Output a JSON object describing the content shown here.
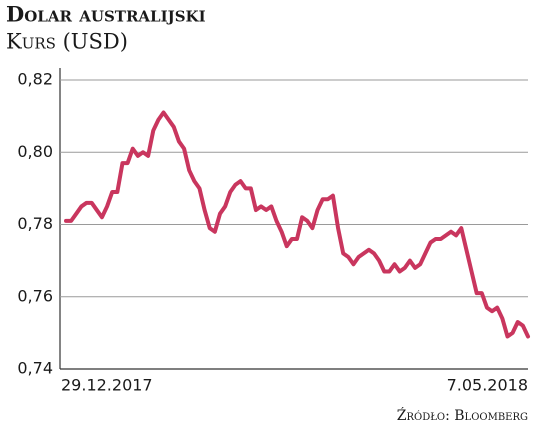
{
  "chart_data": {
    "type": "line",
    "title": "Dolar australijski",
    "subtitle": "Kurs (USD)",
    "source": "Źródło: Bloomberg",
    "categories": [
      "29.12.2017",
      null,
      null,
      null,
      null,
      null,
      null,
      null,
      null,
      null,
      null,
      null,
      null,
      null,
      null,
      null,
      null,
      null,
      null,
      null,
      null,
      null,
      null,
      null,
      null,
      null,
      null,
      null,
      null,
      null,
      null,
      null,
      null,
      null,
      null,
      null,
      null,
      null,
      null,
      null,
      null,
      null,
      null,
      null,
      null,
      null,
      null,
      null,
      null,
      null,
      null,
      null,
      null,
      null,
      null,
      null,
      null,
      null,
      null,
      null,
      null,
      null,
      null,
      null,
      null,
      null,
      null,
      null,
      null,
      null,
      null,
      null,
      null,
      null,
      null,
      null,
      null,
      null,
      null,
      null,
      null,
      null,
      null,
      null,
      null,
      null,
      null,
      null,
      null,
      null,
      "7.05.2018"
    ],
    "series": [
      {
        "name": "Kurs",
        "color": "#c9365e",
        "values": [
          0.781,
          0.781,
          0.783,
          0.785,
          0.786,
          0.786,
          0.784,
          0.782,
          0.785,
          0.789,
          0.789,
          0.797,
          0.797,
          0.801,
          0.799,
          0.8,
          0.799,
          0.806,
          0.809,
          0.811,
          0.809,
          0.807,
          0.803,
          0.801,
          0.795,
          0.792,
          0.79,
          0.784,
          0.779,
          0.778,
          0.783,
          0.785,
          0.789,
          0.791,
          0.792,
          0.79,
          0.79,
          0.784,
          0.785,
          0.784,
          0.785,
          0.781,
          0.778,
          0.774,
          0.776,
          0.776,
          0.782,
          0.781,
          0.779,
          0.784,
          0.787,
          0.787,
          0.788,
          0.779,
          0.772,
          0.771,
          0.769,
          0.771,
          0.772,
          0.773,
          0.772,
          0.77,
          0.767,
          0.767,
          0.769,
          0.767,
          0.768,
          0.77,
          0.768,
          0.769,
          0.772,
          0.775,
          0.776,
          0.776,
          0.777,
          0.778,
          0.777,
          0.779,
          0.773,
          0.767,
          0.761,
          0.761,
          0.757,
          0.756,
          0.757,
          0.754,
          0.749,
          0.75,
          0.753,
          0.752,
          0.749
        ]
      }
    ],
    "ylim": [
      0.74,
      0.82
    ],
    "yticks": [
      {
        "value": 0.74,
        "label": "0,74"
      },
      {
        "value": 0.76,
        "label": "0,76"
      },
      {
        "value": 0.78,
        "label": "0,78"
      },
      {
        "value": 0.8,
        "label": "0,80"
      },
      {
        "value": 0.82,
        "label": "0,82"
      }
    ],
    "grid": true
  }
}
